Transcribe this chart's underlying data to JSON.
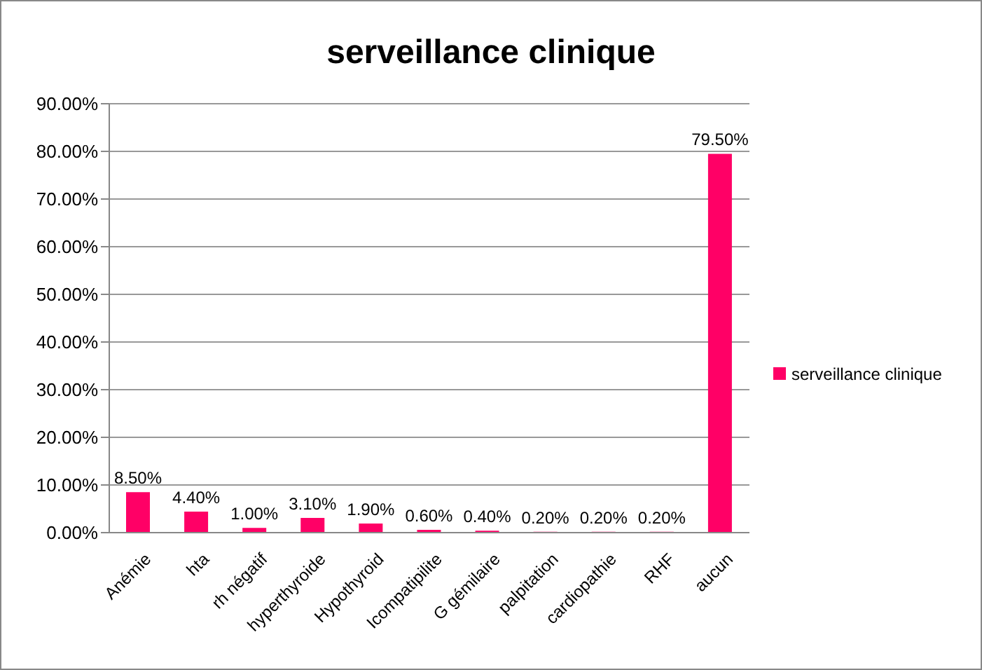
{
  "chart_data": {
    "type": "bar",
    "title": "serveillance clinique",
    "categories": [
      "Anémie",
      "hta",
      "rh négatif",
      "hyperthyroide",
      "Hypothyroid",
      "Icompatipilite",
      "G gémilaire",
      "palpitation",
      "cardiopathie",
      "RHF",
      "aucun"
    ],
    "series": [
      {
        "name": "serveillance clinique",
        "color": "#ff0066",
        "values": [
          8.5,
          4.4,
          1.0,
          3.1,
          1.9,
          0.6,
          0.4,
          0.2,
          0.2,
          0.2,
          79.5
        ],
        "value_labels": [
          "8.50%",
          "4.40%",
          "1.00%",
          "3.10%",
          "1.90%",
          "0.60%",
          "0.40%",
          "0.20%",
          "0.20%",
          "0.20%",
          "79.50%"
        ]
      }
    ],
    "ylim": [
      0,
      90
    ],
    "yticks": [
      {
        "value": 0,
        "label": "0.00%"
      },
      {
        "value": 10,
        "label": "10.00%"
      },
      {
        "value": 20,
        "label": "20.00%"
      },
      {
        "value": 30,
        "label": "30.00%"
      },
      {
        "value": 40,
        "label": "40.00%"
      },
      {
        "value": 50,
        "label": "50.00%"
      },
      {
        "value": 60,
        "label": "60.00%"
      },
      {
        "value": 70,
        "label": "70.00%"
      },
      {
        "value": 80,
        "label": "80.00%"
      },
      {
        "value": 90,
        "label": "90.00%"
      }
    ],
    "grid": "y",
    "legend": "right"
  }
}
